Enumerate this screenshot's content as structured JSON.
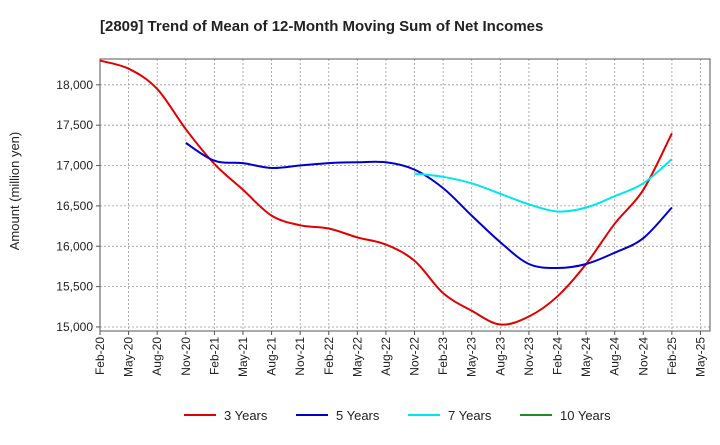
{
  "chart_data": {
    "type": "line",
    "title": "[2809]  Trend of Mean of 12-Month Moving Sum of Net Incomes",
    "ylabel": "Amount (million yen)",
    "xlabel": "",
    "ylim": [
      14950,
      18320
    ],
    "yticks": [
      15000,
      15500,
      16000,
      16500,
      17000,
      17500,
      18000
    ],
    "ytick_labels": [
      "15,000",
      "15,500",
      "16,000",
      "16,500",
      "17,000",
      "17,500",
      "18,000"
    ],
    "categories": [
      "Feb-20",
      "May-20",
      "Aug-20",
      "Nov-20",
      "Feb-21",
      "May-21",
      "Aug-21",
      "Nov-21",
      "Feb-22",
      "May-22",
      "Aug-22",
      "Nov-22",
      "Feb-23",
      "May-23",
      "Aug-23",
      "Nov-23",
      "Feb-24",
      "May-24",
      "Aug-24",
      "Nov-24",
      "Feb-25",
      "May-25"
    ],
    "grid": true,
    "legend_position": "bottom",
    "series": [
      {
        "name": "3 Years",
        "color": "#e00000",
        "values": [
          18300,
          18200,
          17950,
          17450,
          17020,
          16700,
          16380,
          16260,
          16220,
          16110,
          16020,
          15820,
          15420,
          15200,
          15030,
          15130,
          15380,
          15780,
          16280,
          16700,
          17400,
          null
        ]
      },
      {
        "name": "5 Years",
        "color": "#0000cc",
        "values": [
          null,
          null,
          null,
          17280,
          17060,
          17030,
          16970,
          17000,
          17030,
          17040,
          17040,
          16950,
          16720,
          16380,
          16050,
          15780,
          15730,
          15780,
          15920,
          16100,
          16480,
          null
        ]
      },
      {
        "name": "7 Years",
        "color": "#00e5ee",
        "values": [
          null,
          null,
          null,
          null,
          null,
          null,
          null,
          null,
          null,
          null,
          null,
          16900,
          16860,
          16780,
          16650,
          16520,
          16430,
          16480,
          16620,
          16780,
          17080,
          null
        ]
      },
      {
        "name": "10 Years",
        "color": "#228b22",
        "values": [
          null,
          null,
          null,
          null,
          null,
          null,
          null,
          null,
          null,
          null,
          null,
          null,
          null,
          null,
          null,
          null,
          null,
          null,
          null,
          null,
          null,
          null
        ]
      }
    ]
  }
}
